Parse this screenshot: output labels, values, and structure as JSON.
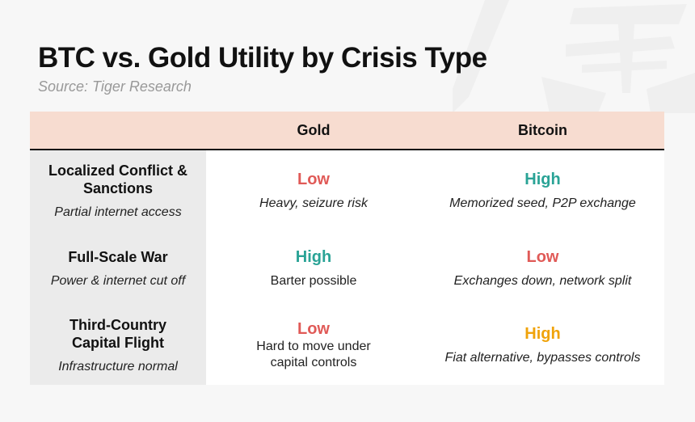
{
  "title": "BTC vs. Gold Utility by Crisis Type",
  "source": "Source: Tiger Research",
  "colors": {
    "header_bg": "#f7dcd0",
    "low": "#e05a57",
    "high_teal": "#2aa396",
    "high_orange": "#f0a30a",
    "label_bg": "#ebebeb"
  },
  "columns": [
    "",
    "Gold",
    "Bitcoin"
  ],
  "rows": [
    {
      "title": "Localized Conflict & Sanctions",
      "subtitle": "Partial internet access",
      "gold": {
        "level": "Low",
        "desc": "Heavy, seizure risk"
      },
      "bitcoin": {
        "level": "High",
        "desc": "Memorized seed, P2P exchange"
      }
    },
    {
      "title": "Full-Scale War",
      "subtitle": "Power & internet cut off",
      "gold": {
        "level": "High",
        "desc": "Barter possible"
      },
      "bitcoin": {
        "level": "Low",
        "desc": "Exchanges down, network split"
      }
    },
    {
      "title": "Third-Country Capital Flight",
      "subtitle": "Infrastructure normal",
      "gold": {
        "level": "Low",
        "desc": "Hard to move under capital controls"
      },
      "bitcoin": {
        "level": "High",
        "desc": "Fiat alternative, bypasses controls"
      }
    }
  ]
}
